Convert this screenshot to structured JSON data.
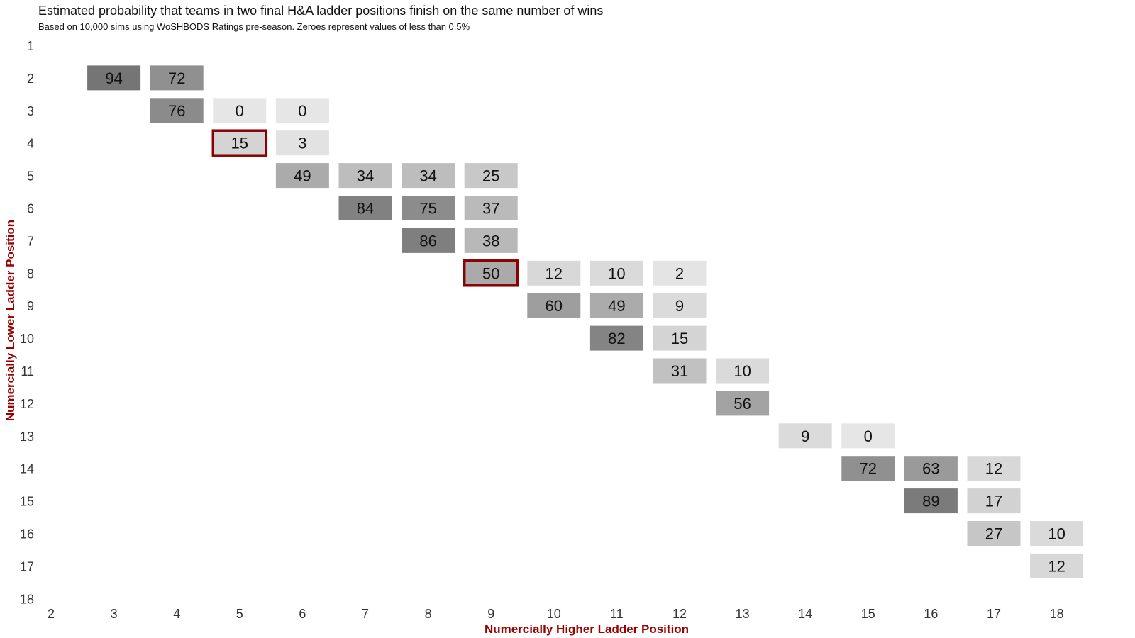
{
  "chart_data": {
    "type": "heatmap",
    "title": "Estimated probability that teams in two final H&A ladder positions finish on the same number of wins",
    "subtitle": "Based on 10,000 sims using WoSHBODS Ratings pre-season. Zeroes represent values of less than 0.5%",
    "xlabel": "Numercially Higher Ladder Position",
    "ylabel": "Numercially Lower Ladder Position",
    "x_ticks": [
      "2",
      "3",
      "4",
      "5",
      "6",
      "7",
      "8",
      "9",
      "10",
      "11",
      "12",
      "13",
      "14",
      "15",
      "16",
      "17",
      "18"
    ],
    "y_ticks": [
      "1",
      "2",
      "3",
      "4",
      "5",
      "6",
      "7",
      "8",
      "9",
      "10",
      "11",
      "12",
      "13",
      "14",
      "15",
      "16",
      "17",
      "18"
    ],
    "cells": [
      {
        "y": 2,
        "x": 3,
        "value": 94
      },
      {
        "y": 2,
        "x": 4,
        "value": 72
      },
      {
        "y": 3,
        "x": 4,
        "value": 76
      },
      {
        "y": 3,
        "x": 5,
        "value": 0
      },
      {
        "y": 3,
        "x": 6,
        "value": 0
      },
      {
        "y": 4,
        "x": 5,
        "value": 15,
        "highlight": true
      },
      {
        "y": 4,
        "x": 6,
        "value": 3
      },
      {
        "y": 5,
        "x": 6,
        "value": 49
      },
      {
        "y": 5,
        "x": 7,
        "value": 34
      },
      {
        "y": 5,
        "x": 8,
        "value": 34
      },
      {
        "y": 5,
        "x": 9,
        "value": 25
      },
      {
        "y": 6,
        "x": 7,
        "value": 84
      },
      {
        "y": 6,
        "x": 8,
        "value": 75
      },
      {
        "y": 6,
        "x": 9,
        "value": 37
      },
      {
        "y": 7,
        "x": 8,
        "value": 86
      },
      {
        "y": 7,
        "x": 9,
        "value": 38
      },
      {
        "y": 8,
        "x": 9,
        "value": 50,
        "highlight": true
      },
      {
        "y": 8,
        "x": 10,
        "value": 12
      },
      {
        "y": 8,
        "x": 11,
        "value": 10
      },
      {
        "y": 8,
        "x": 12,
        "value": 2
      },
      {
        "y": 9,
        "x": 10,
        "value": 60
      },
      {
        "y": 9,
        "x": 11,
        "value": 49
      },
      {
        "y": 9,
        "x": 12,
        "value": 9
      },
      {
        "y": 10,
        "x": 11,
        "value": 82
      },
      {
        "y": 10,
        "x": 12,
        "value": 15
      },
      {
        "y": 11,
        "x": 12,
        "value": 31
      },
      {
        "y": 11,
        "x": 13,
        "value": 10
      },
      {
        "y": 12,
        "x": 13,
        "value": 56
      },
      {
        "y": 13,
        "x": 14,
        "value": 9
      },
      {
        "y": 13,
        "x": 15,
        "value": 0
      },
      {
        "y": 14,
        "x": 15,
        "value": 72
      },
      {
        "y": 14,
        "x": 16,
        "value": 63
      },
      {
        "y": 14,
        "x": 17,
        "value": 12
      },
      {
        "y": 15,
        "x": 16,
        "value": 89
      },
      {
        "y": 15,
        "x": 17,
        "value": 17
      },
      {
        "y": 16,
        "x": 17,
        "value": 27
      },
      {
        "y": 16,
        "x": 18,
        "value": 10
      },
      {
        "y": 17,
        "x": 18,
        "value": 12
      }
    ],
    "color_scale": {
      "low": "#e6e6e6",
      "high": "#6e6e6e",
      "domain": [
        0,
        100
      ]
    },
    "highlight_color": "#8b0000",
    "axis_label_color": "#990000",
    "tick_color": "#333333",
    "grid": false,
    "legend": "none"
  }
}
